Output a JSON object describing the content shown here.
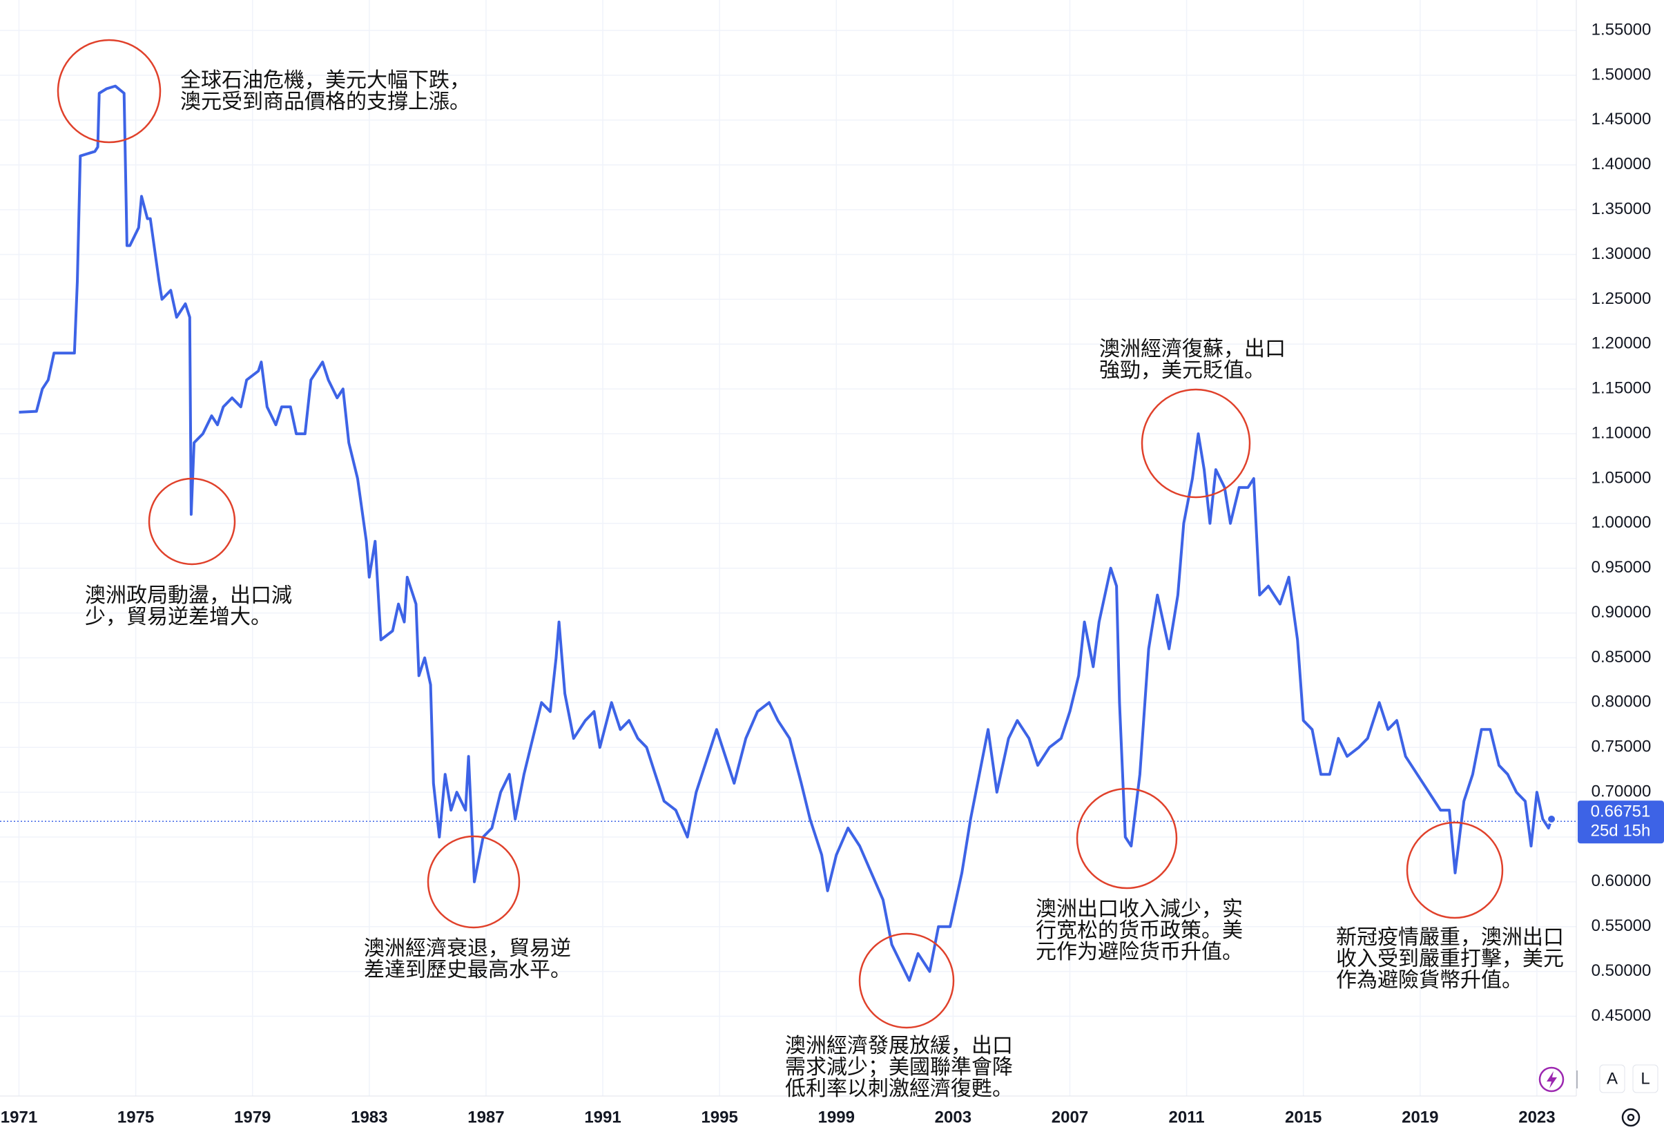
{
  "chart_data": {
    "type": "line",
    "x": [
      1971.0,
      1971.6,
      1971.8,
      1972.0,
      1972.2,
      1972.9,
      1973.0,
      1973.1,
      1973.6,
      1973.7,
      1973.75,
      1974.0,
      1974.3,
      1974.6,
      1974.7,
      1974.8,
      1975.1,
      1975.2,
      1975.4,
      1975.5,
      1975.8,
      1975.9,
      1976.2,
      1976.4,
      1976.7,
      1976.85,
      1976.9,
      1977.0,
      1977.3,
      1977.6,
      1977.8,
      1978.0,
      1978.3,
      1978.6,
      1978.8,
      1979.2,
      1979.3,
      1979.5,
      1979.8,
      1980.0,
      1980.3,
      1980.5,
      1980.8,
      1981.0,
      1981.4,
      1981.6,
      1981.9,
      1982.1,
      1982.3,
      1982.6,
      1982.9,
      1983.0,
      1983.2,
      1983.4,
      1983.8,
      1984.0,
      1984.2,
      1984.3,
      1984.6,
      1984.7,
      1984.9,
      1985.1,
      1985.2,
      1985.4,
      1985.6,
      1985.8,
      1986.0,
      1986.3,
      1986.4,
      1986.6,
      1986.9,
      1987.2,
      1987.5,
      1987.8,
      1988.0,
      1988.3,
      1988.6,
      1988.9,
      1989.2,
      1989.4,
      1989.5,
      1989.7,
      1990.0,
      1990.4,
      1990.7,
      1990.9,
      1991.3,
      1991.6,
      1991.9,
      1992.2,
      1992.5,
      1992.8,
      1993.1,
      1993.5,
      1993.9,
      1994.2,
      1994.6,
      1994.9,
      1995.2,
      1995.5,
      1995.9,
      1996.3,
      1996.7,
      1997.0,
      1997.4,
      1997.8,
      1998.1,
      1998.5,
      1998.7,
      1999.0,
      1999.4,
      1999.8,
      2000.2,
      2000.6,
      2000.9,
      2001.2,
      2001.5,
      2001.8,
      2002.2,
      2002.5,
      2002.9,
      2003.3,
      2003.6,
      2003.9,
      2004.2,
      2004.5,
      2004.9,
      2005.2,
      2005.6,
      2005.9,
      2006.3,
      2006.7,
      2007.0,
      2007.3,
      2007.5,
      2007.8,
      2008.0,
      2008.4,
      2008.6,
      2008.7,
      2008.9,
      2009.1,
      2009.4,
      2009.7,
      2010.0,
      2010.4,
      2010.7,
      2010.9,
      2011.2,
      2011.4,
      2011.6,
      2011.8,
      2012.0,
      2012.3,
      2012.5,
      2012.8,
      2013.1,
      2013.3,
      2013.5,
      2013.8,
      2014.2,
      2014.5,
      2014.8,
      2015.0,
      2015.3,
      2015.6,
      2015.9,
      2016.2,
      2016.5,
      2016.9,
      2017.2,
      2017.6,
      2017.9,
      2018.2,
      2018.5,
      2018.9,
      2019.3,
      2019.7,
      2020.0,
      2020.2,
      2020.5,
      2020.8,
      2021.1,
      2021.4,
      2021.7,
      2022.0,
      2022.3,
      2022.6,
      2022.8,
      2023.0,
      2023.2,
      2023.4,
      2023.5
    ],
    "series": [
      {
        "color": "#3d63e6",
        "values": [
          1.124,
          1.125,
          1.15,
          1.16,
          1.19,
          1.19,
          1.27,
          1.41,
          1.415,
          1.42,
          1.48,
          1.485,
          1.488,
          1.48,
          1.31,
          1.31,
          1.33,
          1.365,
          1.34,
          1.34,
          1.27,
          1.25,
          1.26,
          1.23,
          1.245,
          1.23,
          1.01,
          1.09,
          1.1,
          1.12,
          1.11,
          1.13,
          1.14,
          1.13,
          1.16,
          1.17,
          1.18,
          1.13,
          1.11,
          1.13,
          1.13,
          1.1,
          1.1,
          1.16,
          1.18,
          1.16,
          1.14,
          1.15,
          1.09,
          1.05,
          0.98,
          0.94,
          0.98,
          0.87,
          0.88,
          0.91,
          0.89,
          0.94,
          0.91,
          0.83,
          0.85,
          0.82,
          0.71,
          0.65,
          0.72,
          0.68,
          0.7,
          0.68,
          0.74,
          0.6,
          0.65,
          0.66,
          0.7,
          0.72,
          0.67,
          0.72,
          0.76,
          0.8,
          0.79,
          0.85,
          0.89,
          0.81,
          0.76,
          0.78,
          0.79,
          0.75,
          0.8,
          0.77,
          0.78,
          0.76,
          0.75,
          0.72,
          0.69,
          0.68,
          0.65,
          0.7,
          0.74,
          0.77,
          0.74,
          0.71,
          0.76,
          0.79,
          0.8,
          0.78,
          0.76,
          0.71,
          0.67,
          0.63,
          0.59,
          0.63,
          0.66,
          0.64,
          0.61,
          0.58,
          0.53,
          0.51,
          0.49,
          0.52,
          0.5,
          0.55,
          0.55,
          0.61,
          0.67,
          0.72,
          0.77,
          0.7,
          0.76,
          0.78,
          0.76,
          0.73,
          0.75,
          0.76,
          0.79,
          0.83,
          0.89,
          0.84,
          0.89,
          0.95,
          0.93,
          0.8,
          0.65,
          0.64,
          0.72,
          0.86,
          0.92,
          0.86,
          0.92,
          1.0,
          1.05,
          1.1,
          1.06,
          1.0,
          1.06,
          1.04,
          1.0,
          1.04,
          1.04,
          1.05,
          0.92,
          0.93,
          0.91,
          0.94,
          0.87,
          0.78,
          0.77,
          0.72,
          0.72,
          0.76,
          0.74,
          0.75,
          0.76,
          0.8,
          0.77,
          0.78,
          0.74,
          0.72,
          0.7,
          0.68,
          0.68,
          0.61,
          0.69,
          0.72,
          0.77,
          0.77,
          0.73,
          0.72,
          0.7,
          0.69,
          0.64,
          0.7,
          0.67,
          0.66,
          0.67
        ]
      }
    ],
    "xlim": [
      1970.35,
      2024.35
    ],
    "xticks": [
      1971,
      1975,
      1979,
      1983,
      1987,
      1991,
      1995,
      1999,
      2003,
      2007,
      2011,
      2015,
      2019,
      2023
    ],
    "ylim": [
      0.361,
      1.584
    ],
    "yticks": [
      {
        "value": 0.45,
        "label": "0.45000"
      },
      {
        "value": 0.5,
        "label": "0.50000"
      },
      {
        "value": 0.55,
        "label": "0.55000"
      },
      {
        "value": 0.6,
        "label": "0.60000"
      },
      {
        "value": 0.65,
        "label": "0.65000"
      },
      {
        "value": 0.7,
        "label": "0.70000"
      },
      {
        "value": 0.75,
        "label": "0.75000"
      },
      {
        "value": 0.8,
        "label": "0.80000"
      },
      {
        "value": 0.85,
        "label": "0.85000"
      },
      {
        "value": 0.9,
        "label": "0.90000"
      },
      {
        "value": 0.95,
        "label": "0.95000"
      },
      {
        "value": 1.0,
        "label": "1.00000"
      },
      {
        "value": 1.05,
        "label": "1.05000"
      },
      {
        "value": 1.1,
        "label": "1.10000"
      },
      {
        "value": 1.15,
        "label": "1.15000"
      },
      {
        "value": 1.2,
        "label": "1.20000"
      },
      {
        "value": 1.25,
        "label": "1.25000"
      },
      {
        "value": 1.3,
        "label": "1.30000"
      },
      {
        "value": 1.35,
        "label": "1.35000"
      },
      {
        "value": 1.4,
        "label": "1.40000"
      },
      {
        "value": 1.45,
        "label": "1.45000"
      },
      {
        "value": 1.5,
        "label": "1.50000"
      },
      {
        "value": 1.55,
        "label": "1.55000"
      }
    ],
    "grid": true,
    "last_price": 0.66751,
    "countdown": "25d 15h",
    "annotations": [
      [
        "全球石油危機，美元大幅下跌，",
        "澳元受到商品價格的支撐上漲。"
      ],
      [
        "澳洲政局動盪，出口減",
        "少，貿易逆差增大。"
      ],
      [
        "澳洲經濟衰退，貿易逆",
        "差達到歷史最高水平。"
      ],
      [
        "澳洲經濟發展放緩，出口",
        "需求減少；美國聯準會降",
        "低利率以刺激經濟復甦。"
      ],
      [
        "澳洲出口收入減少，实",
        "行宽松的货币政策。美",
        "元作为避险货币升值。"
      ],
      [
        "澳洲經濟復蘇，出口",
        "強勁，美元貶值。"
      ],
      [
        "新冠疫情嚴重，澳洲出口",
        "收入受到嚴重打擊，美元",
        "作為避險貨幣升值。"
      ]
    ],
    "controls": [
      "A",
      "L"
    ]
  }
}
